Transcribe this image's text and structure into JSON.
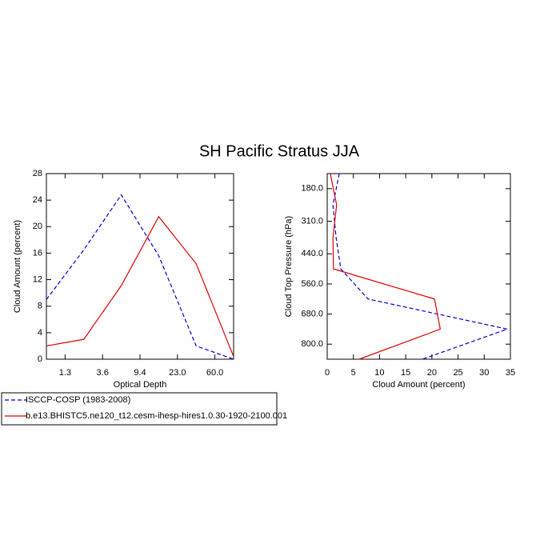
{
  "title": "SH Pacific Stratus JJA",
  "chart_data": [
    {
      "type": "line",
      "xlabel": "Optical Depth",
      "ylabel": "Cloud Amount (percent)",
      "x": [
        0,
        1,
        2,
        3,
        4,
        5
      ],
      "xlim": [
        0,
        5
      ],
      "xticks": [
        {
          "value": 0.5,
          "label": "1.3"
        },
        {
          "value": 1.5,
          "label": "3.6"
        },
        {
          "value": 2.5,
          "label": "9.4"
        },
        {
          "value": 3.5,
          "label": "23.0"
        },
        {
          "value": 4.5,
          "label": "60.0"
        }
      ],
      "ylim": [
        0,
        28
      ],
      "yticks": [
        0,
        4,
        8,
        12,
        16,
        20,
        24,
        28
      ],
      "series": [
        {
          "name": "ISCCP-COSP (1983-2008)",
          "color": "#0000cc",
          "dash": "dashed",
          "values": [
            9,
            16.5,
            24.8,
            15.6,
            2,
            0
          ]
        },
        {
          "name": "b.e13.BHISTC5.ne120_t12.cesm-ihesp-hires1.0.30-1920-2100.001",
          "color": "#dd0000",
          "dash": "solid",
          "values": [
            2,
            3,
            11.1,
            21.5,
            14.4,
            0.4
          ]
        }
      ]
    },
    {
      "type": "hline",
      "xlabel": "Cloud Amount (percent)",
      "ylabel": "Cloud Top Pressure (hPa)",
      "y": [
        120,
        245,
        375,
        500,
        620,
        740,
        860
      ],
      "ylim": [
        120,
        860
      ],
      "yinverted": true,
      "yticks": [
        {
          "value": 180,
          "label": "180.0"
        },
        {
          "value": 310,
          "label": "310.0"
        },
        {
          "value": 440,
          "label": "440.0"
        },
        {
          "value": 560,
          "label": "560.0"
        },
        {
          "value": 680,
          "label": "680.0"
        },
        {
          "value": 800,
          "label": "800.0"
        }
      ],
      "xlim": [
        0,
        35
      ],
      "xticks": [
        0,
        5,
        10,
        15,
        20,
        25,
        30,
        35
      ],
      "series": [
        {
          "color": "#0000cc",
          "dash": "dashed",
          "values": [
            2.3,
            1.1,
            1.7,
            2.6,
            7.8,
            34.4,
            18.2
          ]
        },
        {
          "color": "#dd0000",
          "dash": "solid",
          "values": [
            0.6,
            1.8,
            1.1,
            1.2,
            20.5,
            21.6,
            6.1
          ]
        }
      ]
    }
  ]
}
